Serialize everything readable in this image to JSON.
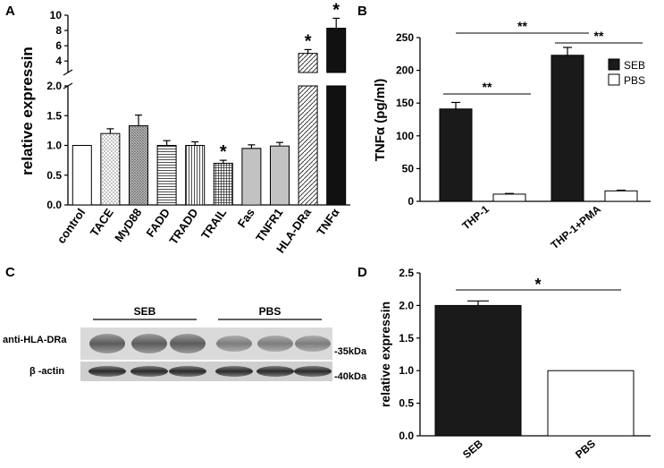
{
  "panels": {
    "A": {
      "label": "A"
    },
    "B": {
      "label": "B"
    },
    "C": {
      "label": "C"
    },
    "D": {
      "label": "D"
    }
  },
  "chart_data": [
    {
      "panel": "A",
      "type": "bar",
      "ylabel": "relative expressin",
      "categories": [
        "control",
        "TACE",
        "MyD88",
        "FADD",
        "TRADD",
        "TRAIL",
        "Fas",
        "TNFR1",
        "HLA-DRa",
        "TNFα"
      ],
      "values": [
        1.0,
        1.2,
        1.33,
        1.0,
        1.0,
        0.7,
        0.95,
        0.99,
        5.0,
        8.3
      ],
      "errors": [
        0,
        0.08,
        0.18,
        0.08,
        0.06,
        0.05,
        0.06,
        0.06,
        0.5,
        1.3
      ],
      "significance": [
        "",
        "",
        "",
        "",
        "",
        "*",
        "",
        "",
        "*",
        "*"
      ],
      "fills": [
        "white",
        "dots",
        "dense-dots",
        "hlines",
        "vlines",
        "grid",
        "hlines-fine",
        "vlines-fine",
        "diag",
        "black"
      ],
      "y_lower_ticks": [
        "0.0",
        "0.5",
        "1.0",
        "1.5",
        "2.0"
      ],
      "y_upper_ticks": [
        "4",
        "6",
        "8",
        "10"
      ],
      "ylim_lower": [
        0,
        2.0
      ],
      "ylim_upper": [
        2.5,
        10
      ],
      "broken_axis": true
    },
    {
      "panel": "B",
      "type": "bar",
      "ylabel": "TNFα (pg/ml)",
      "categories": [
        "THP-1",
        "THP-1+PMA"
      ],
      "series": [
        {
          "name": "SEB",
          "values": [
            141,
            223
          ],
          "errors": [
            10,
            12
          ],
          "color": "#1a1a1a"
        },
        {
          "name": "PBS",
          "values": [
            11,
            16
          ],
          "errors": [
            1,
            1
          ],
          "color": "#ffffff"
        }
      ],
      "ylim": [
        0,
        250
      ],
      "y_ticks": [
        "0",
        "50",
        "100",
        "150",
        "200",
        "250"
      ],
      "significance": [
        {
          "from": "THP-1 SEB",
          "to": "THP-1 PBS",
          "text": "**"
        },
        {
          "from": "THP-1+PMA SEB",
          "to": "THP-1+PMA PBS",
          "text": "**"
        },
        {
          "from": "THP-1 SEB",
          "to": "THP-1+PMA SEB",
          "text": "**"
        }
      ],
      "legend_position": "top-right"
    },
    {
      "panel": "D",
      "type": "bar",
      "ylabel": "relative expressin",
      "categories": [
        "SEB",
        "PBS"
      ],
      "values": [
        2.0,
        1.0
      ],
      "errors": [
        0.07,
        0
      ],
      "colors": [
        "#1a1a1a",
        "#ffffff"
      ],
      "ylim": [
        0,
        2.5
      ],
      "y_ticks": [
        "0.0",
        "0.5",
        "1.0",
        "1.5",
        "2.0",
        "2.5"
      ],
      "significance": [
        {
          "from": "SEB",
          "to": "PBS",
          "text": "*"
        }
      ]
    }
  ],
  "blot": {
    "group_labels": [
      "SEB",
      "PBS"
    ],
    "row_labels": [
      "anti-HLA-DRa",
      "β -actin"
    ],
    "size_markers": [
      "-35kDa",
      "-40kDa"
    ],
    "lanes_per_group": 3
  }
}
